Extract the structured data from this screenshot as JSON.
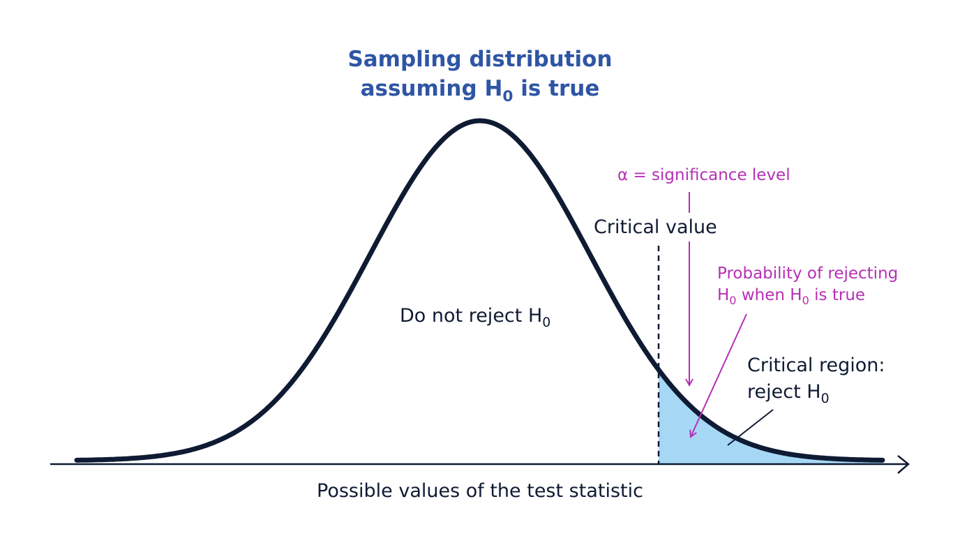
{
  "title": {
    "line1": "Sampling distribution",
    "line2": [
      "assuming H",
      "0",
      " is true"
    ]
  },
  "labels": {
    "do_not_reject": [
      "Do not reject H",
      "0"
    ],
    "critical_value": "Critical value",
    "alpha": "α = significance level",
    "probability": {
      "line1": "Probability of rejecting",
      "line2": [
        "H",
        "0",
        " when H",
        "0",
        " is true"
      ]
    },
    "critical_region": {
      "line1": "Critical region:",
      "line2": [
        "reject H",
        "0"
      ]
    },
    "x_axis": "Possible values of the test statistic"
  }
}
